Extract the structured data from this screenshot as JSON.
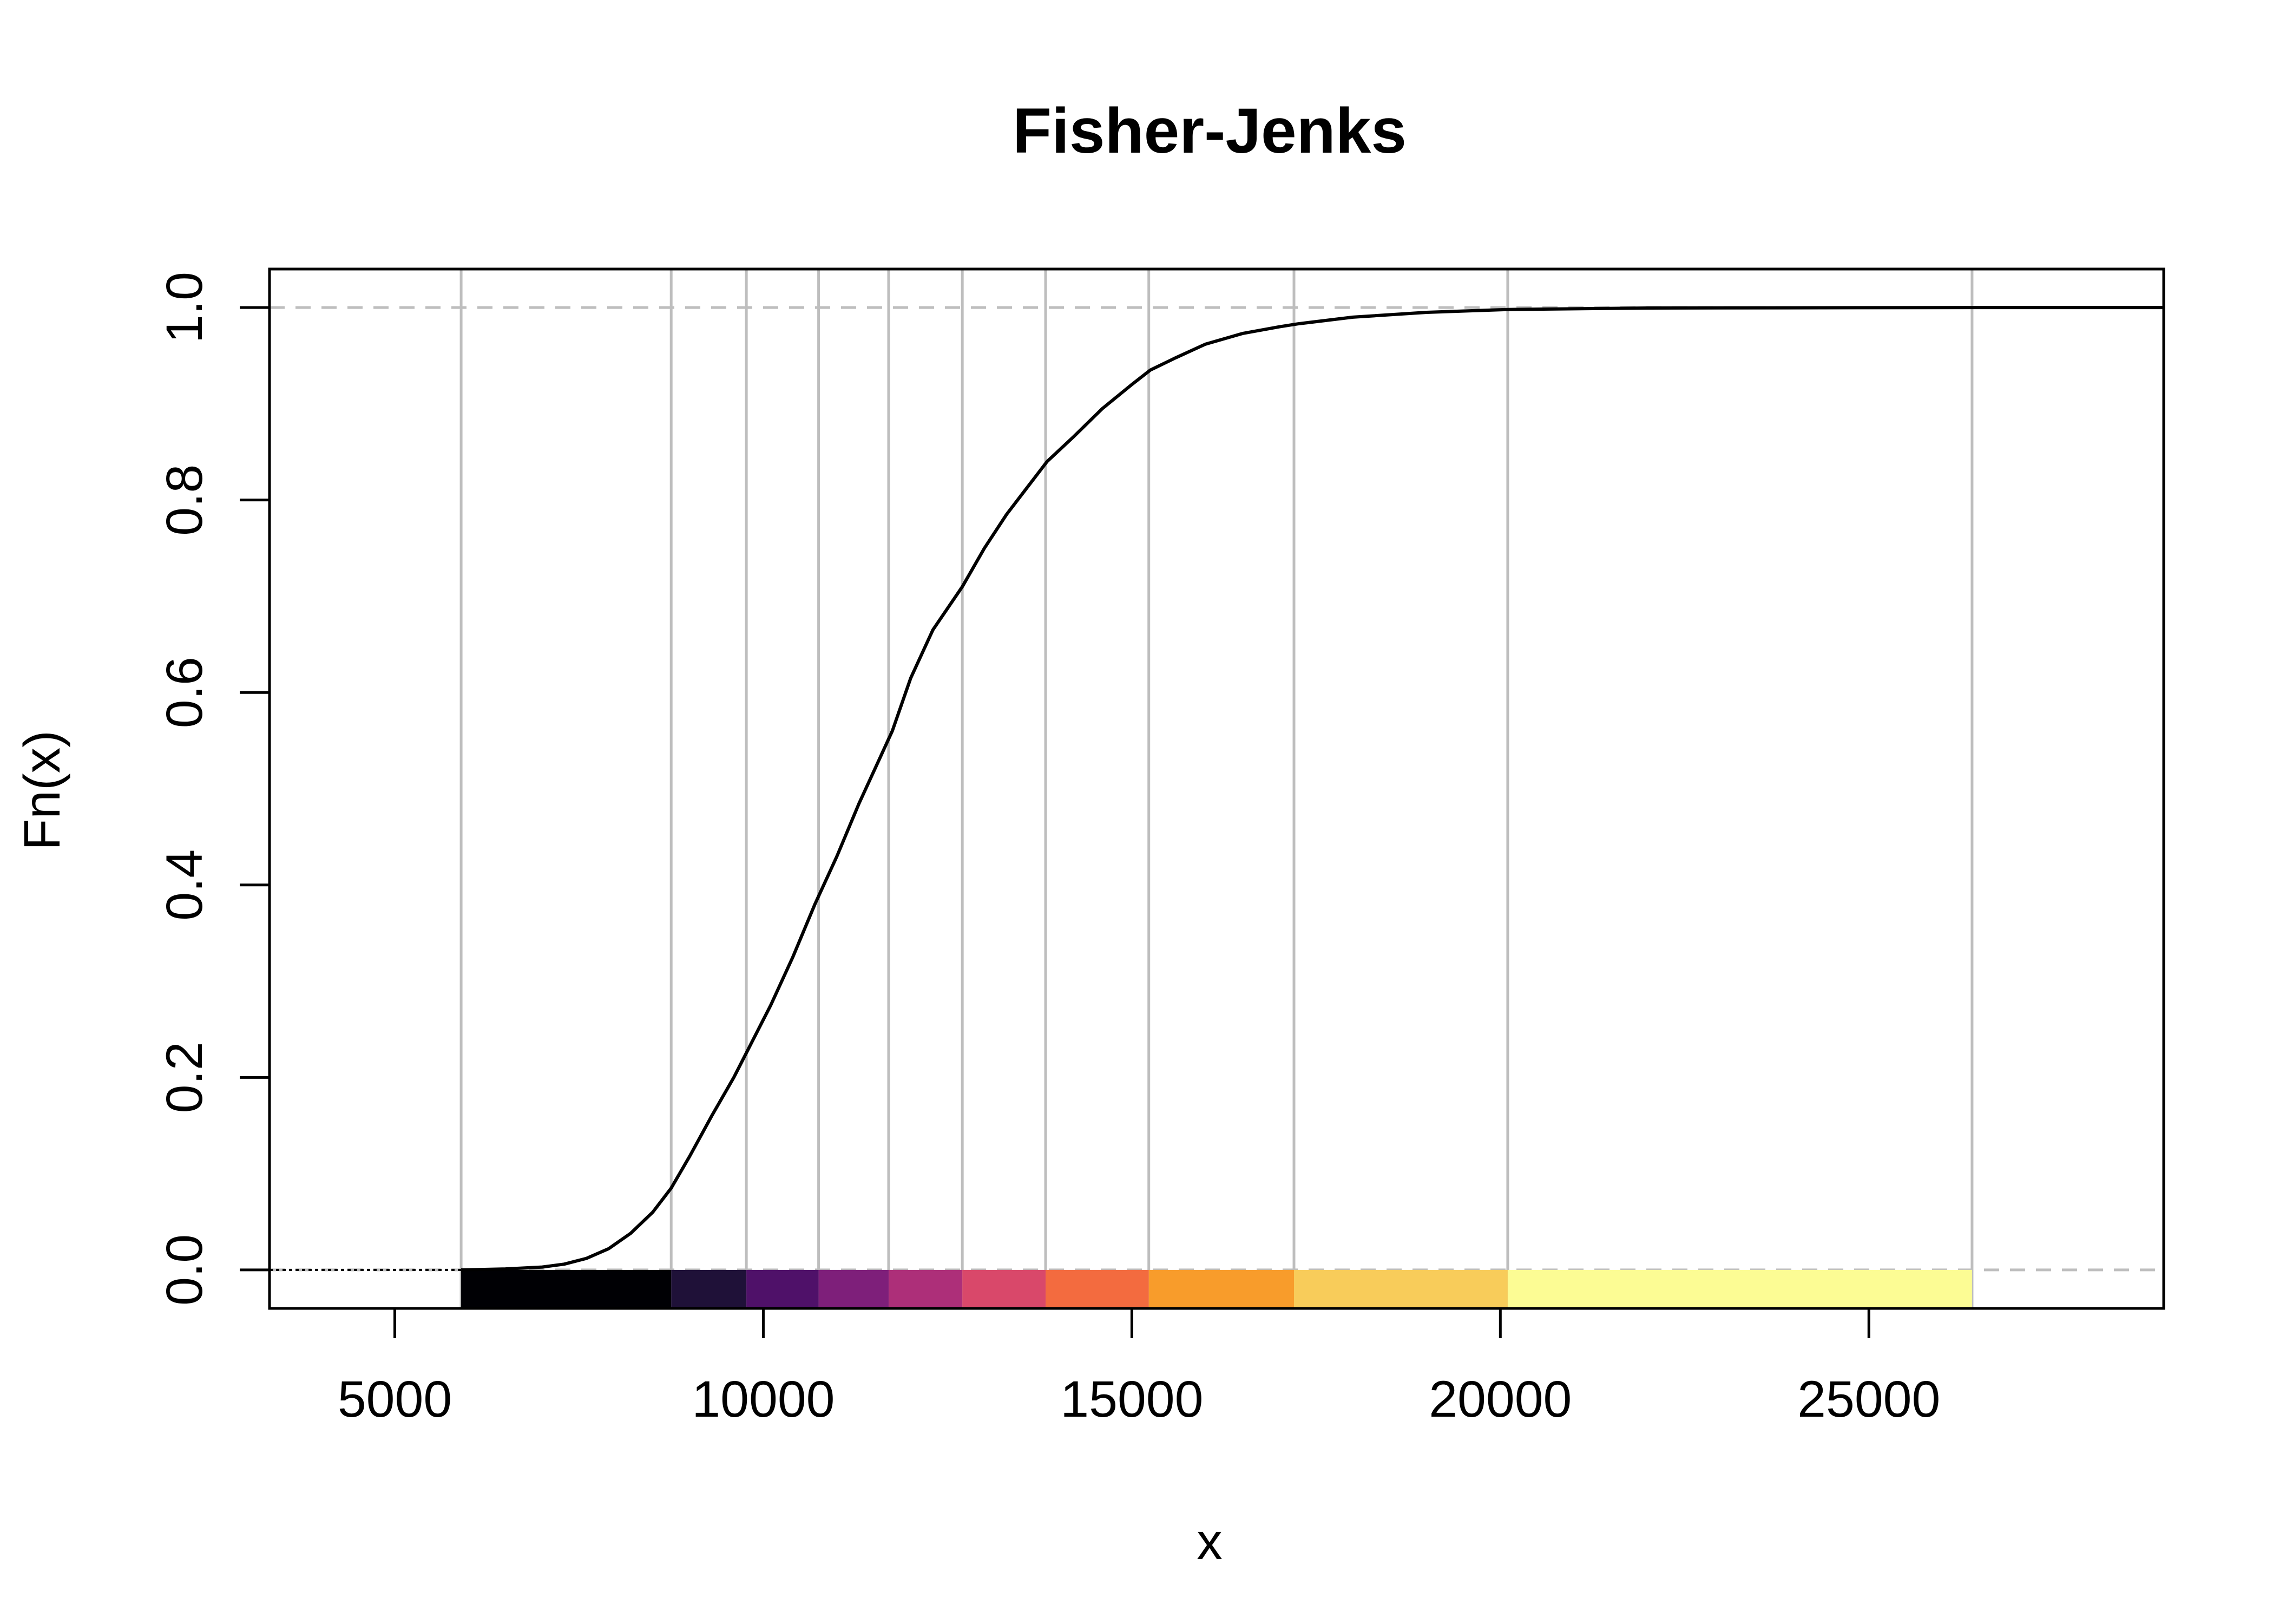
{
  "chart_data": {
    "type": "line",
    "title": "Fisher-Jenks",
    "xlabel": "x",
    "ylabel": "Fn(x)",
    "xlim": [
      3300,
      29000
    ],
    "ylim": [
      -0.04,
      1.04
    ],
    "x_ticks": [
      5000,
      10000,
      15000,
      20000,
      25000
    ],
    "x_tick_labels": [
      "5000",
      "10000",
      "15000",
      "20000",
      "25000"
    ],
    "y_ticks": [
      0.0,
      0.2,
      0.4,
      0.6,
      0.8,
      1.0
    ],
    "y_tick_labels": [
      "0.0",
      "0.2",
      "0.4",
      "0.6",
      "0.8",
      "1.0"
    ],
    "reference_lines": [
      0,
      1
    ],
    "grid": "vertical lines at class breaks",
    "series": [
      {
        "x": [
          5900,
          6500,
          7000,
          7300,
          7600,
          7900,
          8200,
          8500,
          8750,
          9000,
          9300,
          9600,
          9800,
          10100,
          10400,
          10700,
          11000,
          11300,
          11600,
          11750,
          12000,
          12300,
          12700,
          13000,
          13300,
          13600,
          13850,
          14200,
          14600,
          15000,
          15250,
          15600,
          16000,
          16500,
          17000,
          17250,
          18000,
          19000,
          20100,
          22000,
          26400,
          29000
        ],
        "y": [
          0.0,
          0.001,
          0.003,
          0.006,
          0.012,
          0.022,
          0.038,
          0.06,
          0.085,
          0.118,
          0.16,
          0.2,
          0.23,
          0.275,
          0.325,
          0.38,
          0.43,
          0.485,
          0.535,
          0.56,
          0.615,
          0.665,
          0.71,
          0.75,
          0.785,
          0.815,
          0.84,
          0.865,
          0.895,
          0.92,
          0.935,
          0.948,
          0.962,
          0.973,
          0.98,
          0.983,
          0.99,
          0.995,
          0.998,
          0.9995,
          1.0,
          1.0
        ]
      }
    ],
    "class_breaks": [
      5900,
      8750,
      9770,
      10750,
      11700,
      12700,
      13830,
      15230,
      17200,
      20100,
      26400
    ],
    "class_colors": [
      "#000004",
      "#1f1138",
      "#4f1169",
      "#7e1f7a",
      "#ad2f79",
      "#d9486a",
      "#f36b3f",
      "#f89c2b",
      "#f8cc5a",
      "#fcfc94"
    ]
  }
}
